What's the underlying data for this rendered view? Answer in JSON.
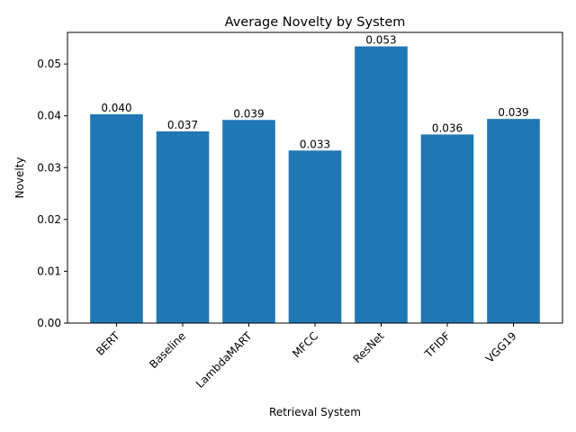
{
  "chart_data": {
    "type": "bar",
    "title": "Average Novelty by System",
    "xlabel": "Retrieval System",
    "ylabel": "Novelty",
    "categories": [
      "BERT",
      "Baseline",
      "LambdaMART",
      "MFCC",
      "ResNet",
      "TFIDF",
      "VGG19"
    ],
    "values": [
      0.0403,
      0.037,
      0.0392,
      0.0333,
      0.0534,
      0.0364,
      0.0394
    ],
    "data_labels": [
      "0.040",
      "0.037",
      "0.039",
      "0.033",
      "0.053",
      "0.036",
      "0.039"
    ],
    "ylim": [
      0,
      0.0561
    ],
    "yticks": [
      0.0,
      0.01,
      0.02,
      0.03,
      0.04,
      0.05
    ],
    "ytick_labels": [
      "0.00",
      "0.01",
      "0.02",
      "0.03",
      "0.04",
      "0.05"
    ],
    "grid": false,
    "bar_color": "#1f77b4"
  }
}
